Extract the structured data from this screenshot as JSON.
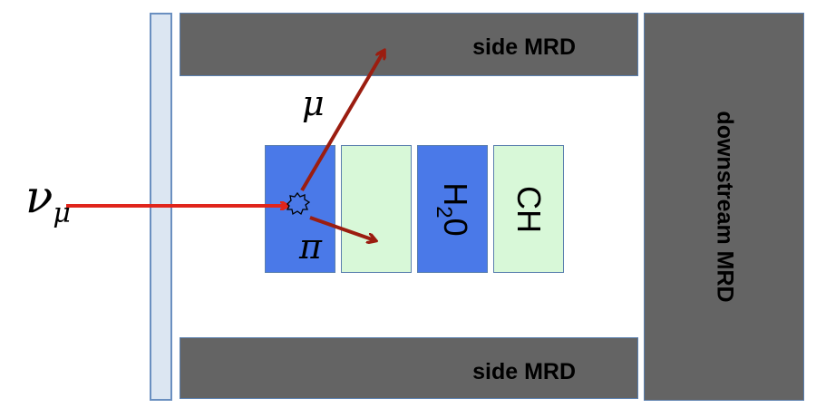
{
  "labels": {
    "neutrino_symbol": "ν",
    "neutrino_subscript": "μ",
    "muon": "μ",
    "pion": "π",
    "side_mrd_top": "side MRD",
    "side_mrd_bottom": "side MRD",
    "downstream_mrd": "downstream MRD",
    "water_main": "H",
    "water_sub": "2",
    "water_end": "0",
    "scintillator": "CH"
  },
  "colors": {
    "veto_fill": "#dce6f2",
    "veto_border": "#6a8fc0",
    "mrd_fill": "#646464",
    "water_target": "#4a79e8",
    "scintillator_target": "#d8f8d8",
    "neutrino_arrow": "#e0251c",
    "particle_arrow": "#9b1d10"
  }
}
